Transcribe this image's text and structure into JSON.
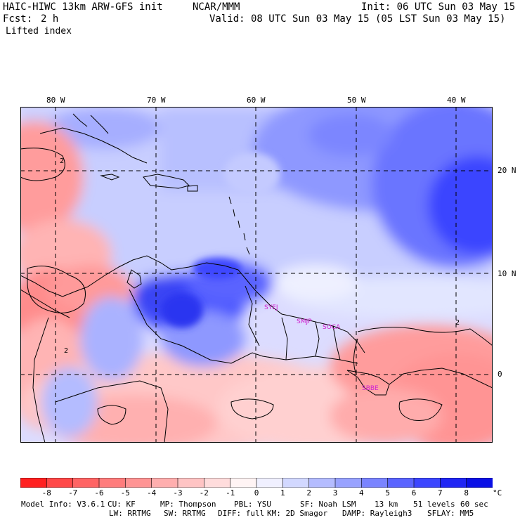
{
  "header": {
    "model": "HAIC-HIWC 13km ARW-GFS init",
    "center": "NCAR/MMM",
    "init": "Init: 06 UTC Sun 03 May 15",
    "fcst_label": "Fcst:",
    "fcst_value": "2 h",
    "valid": "Valid: 08 UTC Sun 03 May 15 (05 LST Sun 03 May 15)",
    "field": "Lifted index"
  },
  "map": {
    "lon_labels": [
      "80 W",
      "70 W",
      "60 W",
      "50 W",
      "40 W"
    ],
    "lat_labels": [
      "20 N",
      "10 N",
      "0"
    ],
    "contour_labels": [
      "2",
      "2",
      "2"
    ],
    "stations": [
      "SYEJ",
      "SMJP",
      "SOCA",
      "SBBE"
    ],
    "station_color": "#d020d0"
  },
  "colorbar": {
    "labels": [
      "-8",
      "-7",
      "-6",
      "-5",
      "-4",
      "-3",
      "-2",
      "-1",
      "0",
      "1",
      "2",
      "3",
      "4",
      "5",
      "6",
      "7",
      "8"
    ],
    "unit": "°C",
    "colors": [
      "#ff2020",
      "#ff4848",
      "#ff6464",
      "#ff7c7c",
      "#ff9494",
      "#ffaeae",
      "#ffc4c4",
      "#ffdcdc",
      "#fff4f4",
      "#f0f0ff",
      "#d2d8ff",
      "#b4bcff",
      "#98a2ff",
      "#7a84ff",
      "#5a64ff",
      "#3c46ff",
      "#2026f4",
      "#0a10e6"
    ]
  },
  "footer": {
    "line1": [
      "Model Info: V3.6.1",
      "CU: KF",
      "MP: Thompson",
      "PBL: YSU",
      "SF: Noah LSM",
      "13 km",
      "51 levels",
      "60 sec"
    ],
    "line2": [
      "LW: RRTMG",
      "SW: RRTMG",
      "DIFF: full",
      "KM: 2D Smagor",
      "DAMP: Rayleigh3",
      "SFLAY: MM5"
    ]
  }
}
